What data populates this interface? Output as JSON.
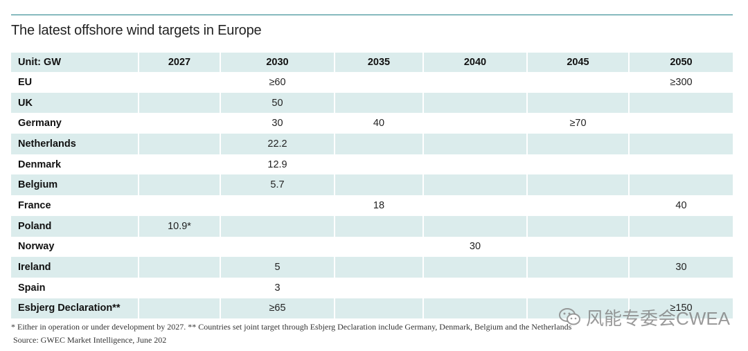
{
  "title": "The latest offshore wind targets in Europe",
  "table": {
    "headers": [
      "Unit: GW",
      "2027",
      "2030",
      "2035",
      "2040",
      "2045",
      "2050"
    ],
    "rows": [
      {
        "country": "EU",
        "values": [
          "",
          "≥60",
          "",
          "",
          "",
          "≥300"
        ]
      },
      {
        "country": "UK",
        "values": [
          "",
          "50",
          "",
          "",
          "",
          ""
        ]
      },
      {
        "country": "Germany",
        "values": [
          "",
          "30",
          "40",
          "",
          "≥70",
          ""
        ]
      },
      {
        "country": "Netherlands",
        "values": [
          "",
          "22.2",
          "",
          "",
          "",
          ""
        ]
      },
      {
        "country": "Denmark",
        "values": [
          "",
          "12.9",
          "",
          "",
          "",
          ""
        ]
      },
      {
        "country": "Belgium",
        "values": [
          "",
          "5.7",
          "",
          "",
          "",
          ""
        ]
      },
      {
        "country": "France",
        "values": [
          "",
          "",
          "18",
          "",
          "",
          "40"
        ]
      },
      {
        "country": "Poland",
        "values": [
          "10.9*",
          "",
          "",
          "",
          "",
          ""
        ]
      },
      {
        "country": "Norway",
        "values": [
          "",
          "",
          "",
          "30",
          "",
          ""
        ]
      },
      {
        "country": "Ireland",
        "values": [
          "",
          "5",
          "",
          "",
          "",
          "30"
        ]
      },
      {
        "country": "Spain",
        "values": [
          "",
          "3",
          "",
          "",
          "",
          ""
        ]
      },
      {
        "country": "Esbjerg Declaration**",
        "values": [
          "",
          "≥65",
          "",
          "",
          "",
          "≥150"
        ]
      }
    ]
  },
  "footnote": "* Either in operation or under development by 2027. ** Countries set joint target through Esbjerg Declaration include Germany, Denmark, Belgium and the Netherlands",
  "source": "Source: GWEC Market Intelligence, June 202",
  "watermark": "风能专委会CWEA",
  "colors": {
    "accent_rule": "#1e7f86",
    "row_shade": "#dbecec"
  }
}
